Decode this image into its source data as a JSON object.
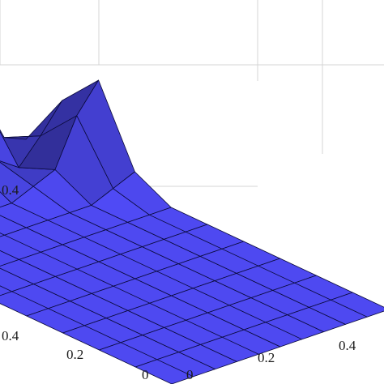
{
  "chart_data": {
    "type": "surface",
    "title": "",
    "xlabel": "",
    "ylabel": "",
    "zlabel": "",
    "grid": true,
    "x_ticks": [
      "0",
      "0.2",
      "0.4"
    ],
    "y_ticks": [
      "0",
      "0.2",
      "0.4"
    ],
    "z_ticks": [
      "0.4"
    ],
    "x": [
      0,
      0.1,
      0.2,
      0.3,
      0.4,
      0.5,
      0.6,
      0.7,
      0.8,
      0.9,
      1.0
    ],
    "y": [
      0,
      0.1,
      0.2,
      0.3,
      0.4,
      0.5,
      0.6,
      0.7,
      0.8,
      0.9,
      1.0
    ],
    "z": [
      [
        0,
        0,
        0,
        0,
        0,
        0,
        0,
        0,
        0,
        0,
        0
      ],
      [
        0,
        0,
        0,
        0,
        0,
        0,
        0,
        0,
        0,
        0,
        0
      ],
      [
        0,
        0,
        0,
        0,
        0,
        0,
        0,
        0,
        0,
        0,
        0
      ],
      [
        0,
        0,
        0,
        0,
        0,
        0,
        0,
        0,
        0,
        0,
        0
      ],
      [
        0,
        0,
        0,
        0,
        0,
        0,
        0,
        0,
        0,
        0,
        0
      ],
      [
        0,
        0,
        0,
        0,
        0,
        0,
        0,
        0,
        0,
        0,
        0
      ],
      [
        0,
        0,
        0,
        0,
        0,
        0,
        0,
        0,
        0,
        0,
        0
      ],
      [
        0,
        0,
        0,
        0,
        0,
        0,
        0,
        0,
        0,
        0.05,
        0.1
      ],
      [
        0,
        0,
        0,
        0,
        0,
        0,
        0,
        0.05,
        0.1,
        0.35,
        0.5
      ],
      [
        0,
        0,
        0,
        0,
        0,
        0.02,
        0.1,
        0.1,
        0.02,
        0.15,
        0.3
      ],
      [
        0,
        0,
        0,
        0,
        0.02,
        0.1,
        0.2,
        0.55,
        0.3,
        0.05,
        0
      ]
    ],
    "surface_color": "#4a46e6",
    "edge_color": "#0a0a3a",
    "grid_color": "#d4d4d4"
  }
}
